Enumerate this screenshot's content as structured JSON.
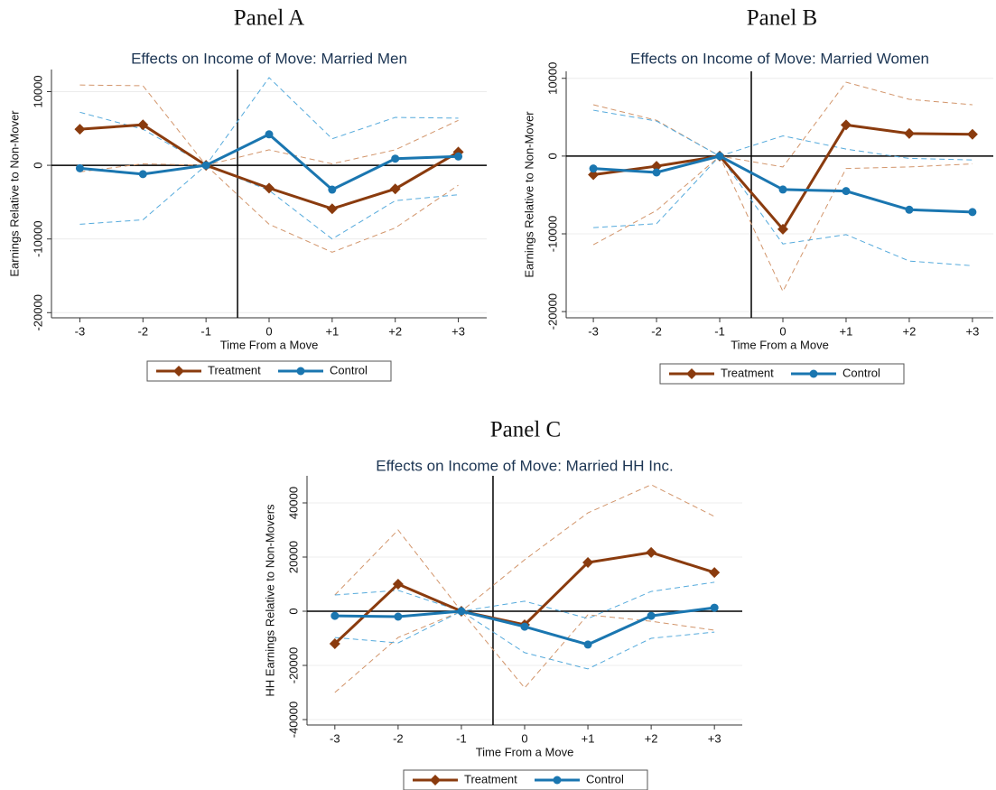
{
  "chart_data": [
    {
      "type": "line",
      "panel": "Panel A",
      "title": "Effects on Income of Move: Married Men",
      "xlabel": "Time From a Move",
      "ylabel": "Earnings Relative to Non-Mover",
      "x": [
        -3,
        -2,
        -1,
        0,
        1,
        2,
        3
      ],
      "xlim": [
        -3.45,
        3.45
      ],
      "ylim": [
        -20700,
        13000
      ],
      "xticks": [
        -3,
        -2,
        -1,
        0,
        {
          "value": 1,
          "label": "+1"
        },
        {
          "value": 2,
          "label": "+2"
        },
        {
          "value": 3,
          "label": "+3"
        }
      ],
      "yticks": [
        -20000,
        -10000,
        0,
        10000
      ],
      "grid": true,
      "vline": -0.5,
      "hline": 0,
      "series": [
        {
          "color": "#d2956b",
          "dash": true,
          "values": [
            10900,
            10800,
            0,
            2100,
            200,
            2100,
            6100
          ]
        },
        {
          "color": "#d2956b",
          "dash": true,
          "values": [
            -900,
            200,
            0,
            -8000,
            -11800,
            -8500,
            -2700
          ]
        },
        {
          "color": "#55aadc",
          "dash": true,
          "values": [
            7200,
            4900,
            0,
            11900,
            3600,
            6500,
            6400
          ]
        },
        {
          "color": "#55aadc",
          "dash": true,
          "values": [
            -8000,
            -7400,
            0,
            -3400,
            -10000,
            -4800,
            -4000
          ]
        },
        {
          "name": "Treatment",
          "color": "#8a3b0e",
          "marker": "diamond",
          "values": [
            4900,
            5500,
            0,
            -3100,
            -5900,
            -3200,
            1800
          ]
        },
        {
          "name": "Control",
          "color": "#1a76b0",
          "marker": "circle",
          "values": [
            -400,
            -1200,
            0,
            4200,
            -3300,
            900,
            1200
          ]
        }
      ]
    },
    {
      "type": "line",
      "panel": "Panel B",
      "title": "Effects on Income of Move: Married Women",
      "xlabel": "Time From a Move",
      "ylabel": "Earnings Relative to Non-Mover",
      "x": [
        -3,
        -2,
        -1,
        0,
        1,
        2,
        3
      ],
      "xlim": [
        -3.43,
        3.33
      ],
      "ylim": [
        -20800,
        10900
      ],
      "xticks": [
        -3,
        -2,
        -1,
        0,
        {
          "value": 1,
          "label": "+1"
        },
        {
          "value": 2,
          "label": "+2"
        },
        {
          "value": 3,
          "label": "+3"
        }
      ],
      "yticks": [
        -20000,
        -10000,
        0,
        10000
      ],
      "grid": true,
      "vline": -0.5,
      "hline": 0,
      "series": [
        {
          "color": "#d2956b",
          "dash": true,
          "values": [
            6600,
            4600,
            0,
            -1400,
            9500,
            7300,
            6600
          ]
        },
        {
          "color": "#d2956b",
          "dash": true,
          "values": [
            -11400,
            -7000,
            0,
            -17400,
            -1600,
            -1400,
            -1000
          ]
        },
        {
          "color": "#55aadc",
          "dash": true,
          "values": [
            5900,
            4500,
            0,
            2600,
            900,
            -300,
            -500
          ]
        },
        {
          "color": "#55aadc",
          "dash": true,
          "values": [
            -9200,
            -8700,
            0,
            -11300,
            -10100,
            -13500,
            -14100
          ]
        },
        {
          "name": "Treatment",
          "color": "#8a3b0e",
          "marker": "diamond",
          "values": [
            -2400,
            -1300,
            0,
            -9400,
            4000,
            2900,
            2800
          ]
        },
        {
          "name": "Control",
          "color": "#1a76b0",
          "marker": "circle",
          "values": [
            -1600,
            -2100,
            0,
            -4300,
            -4500,
            -6900,
            -7200
          ]
        }
      ]
    },
    {
      "type": "line",
      "panel": "Panel C",
      "title": "Effects on Income of Move: Married HH Inc.",
      "xlabel": "Time From a Move",
      "ylabel": "HH Earnings Relative to Non-Movers",
      "x": [
        -3,
        -2,
        -1,
        0,
        1,
        2,
        3
      ],
      "xlim": [
        -3.44,
        3.44
      ],
      "ylim": [
        -42000,
        50000
      ],
      "xticks": [
        -3,
        -2,
        -1,
        0,
        {
          "value": 1,
          "label": "+1"
        },
        {
          "value": 2,
          "label": "+2"
        },
        {
          "value": 3,
          "label": "+3"
        }
      ],
      "yticks": [
        -40000,
        -20000,
        0,
        20000,
        40000
      ],
      "grid": true,
      "vline": -0.5,
      "hline": 0,
      "series": [
        {
          "color": "#d2956b",
          "dash": true,
          "values": [
            6000,
            30000,
            0,
            19000,
            36300,
            46700,
            35000
          ]
        },
        {
          "color": "#d2956b",
          "dash": true,
          "values": [
            -30000,
            -9700,
            0,
            -28300,
            -1300,
            -3700,
            -7000
          ]
        },
        {
          "color": "#55aadc",
          "dash": true,
          "values": [
            6000,
            7700,
            0,
            3700,
            -2700,
            7300,
            10700
          ]
        },
        {
          "color": "#55aadc",
          "dash": true,
          "values": [
            -9700,
            -11700,
            0,
            -15300,
            -21300,
            -10000,
            -7700
          ]
        },
        {
          "name": "Treatment",
          "color": "#8a3b0e",
          "marker": "diamond",
          "values": [
            -12000,
            10000,
            0,
            -5000,
            18000,
            21700,
            14300
          ]
        },
        {
          "name": "Control",
          "color": "#1a76b0",
          "marker": "circle",
          "values": [
            -1700,
            -2000,
            0,
            -5700,
            -12300,
            -1700,
            1300
          ]
        }
      ]
    }
  ]
}
